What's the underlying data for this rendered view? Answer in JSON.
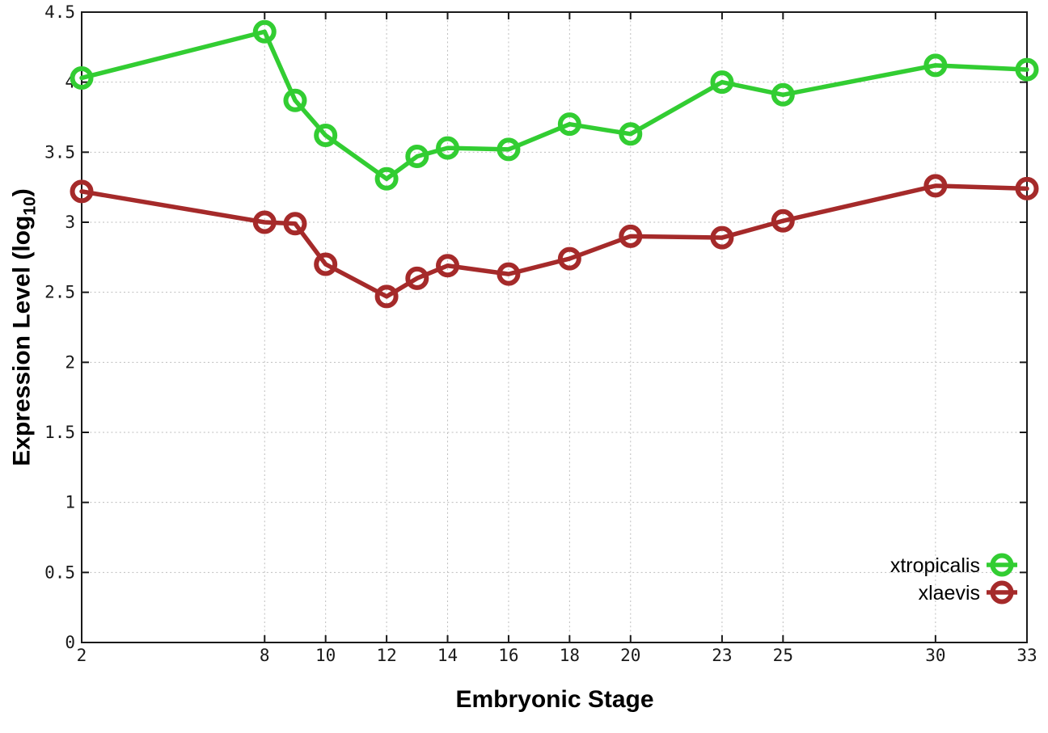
{
  "chart_data": {
    "type": "line",
    "title": "",
    "xlabel": "Embryonic Stage",
    "ylabel": "Expression Level (log10)",
    "ylabel_parts": {
      "prefix": "Expression Level (log",
      "sub": "10",
      "suffix": ")"
    },
    "xlim": [
      2,
      33
    ],
    "ylim": [
      0,
      4.5
    ],
    "xticks": [
      2,
      8,
      10,
      12,
      14,
      16,
      18,
      20,
      23,
      25,
      30,
      33
    ],
    "xtick_labels": [
      "2",
      "8",
      "10",
      "12",
      "14",
      "16",
      "18",
      "20",
      "23",
      "25",
      "30",
      "33"
    ],
    "yticks": [
      0,
      0.5,
      1,
      1.5,
      2,
      2.5,
      3,
      3.5,
      4,
      4.5
    ],
    "ytick_labels": [
      "0",
      "0.5",
      "1",
      "1.5",
      "2",
      "2.5",
      "3",
      "3.5",
      "4",
      "4.5"
    ],
    "grid": true,
    "grid_style": "dotted",
    "legend_position": "inside-bottom-right",
    "x": [
      2,
      8,
      9,
      10,
      12,
      13,
      14,
      16,
      18,
      20,
      23,
      25,
      30,
      33
    ],
    "series": [
      {
        "name": "xtropicalis",
        "color": "#32cd32",
        "marker": "open-circle",
        "values": [
          4.03,
          4.36,
          3.87,
          3.62,
          3.31,
          3.47,
          3.53,
          3.52,
          3.7,
          3.63,
          4.0,
          3.91,
          4.12,
          4.09
        ]
      },
      {
        "name": "xlaevis",
        "color": "#a52a2a",
        "marker": "open-circle",
        "values": [
          3.22,
          3.0,
          2.99,
          2.7,
          2.47,
          2.6,
          2.69,
          2.63,
          2.74,
          2.9,
          2.89,
          3.01,
          3.26,
          3.24
        ]
      }
    ],
    "colors": {
      "grid": "#bdbdbd",
      "border": "#1a1a1a",
      "tick_text": "#1a1a1a"
    }
  }
}
